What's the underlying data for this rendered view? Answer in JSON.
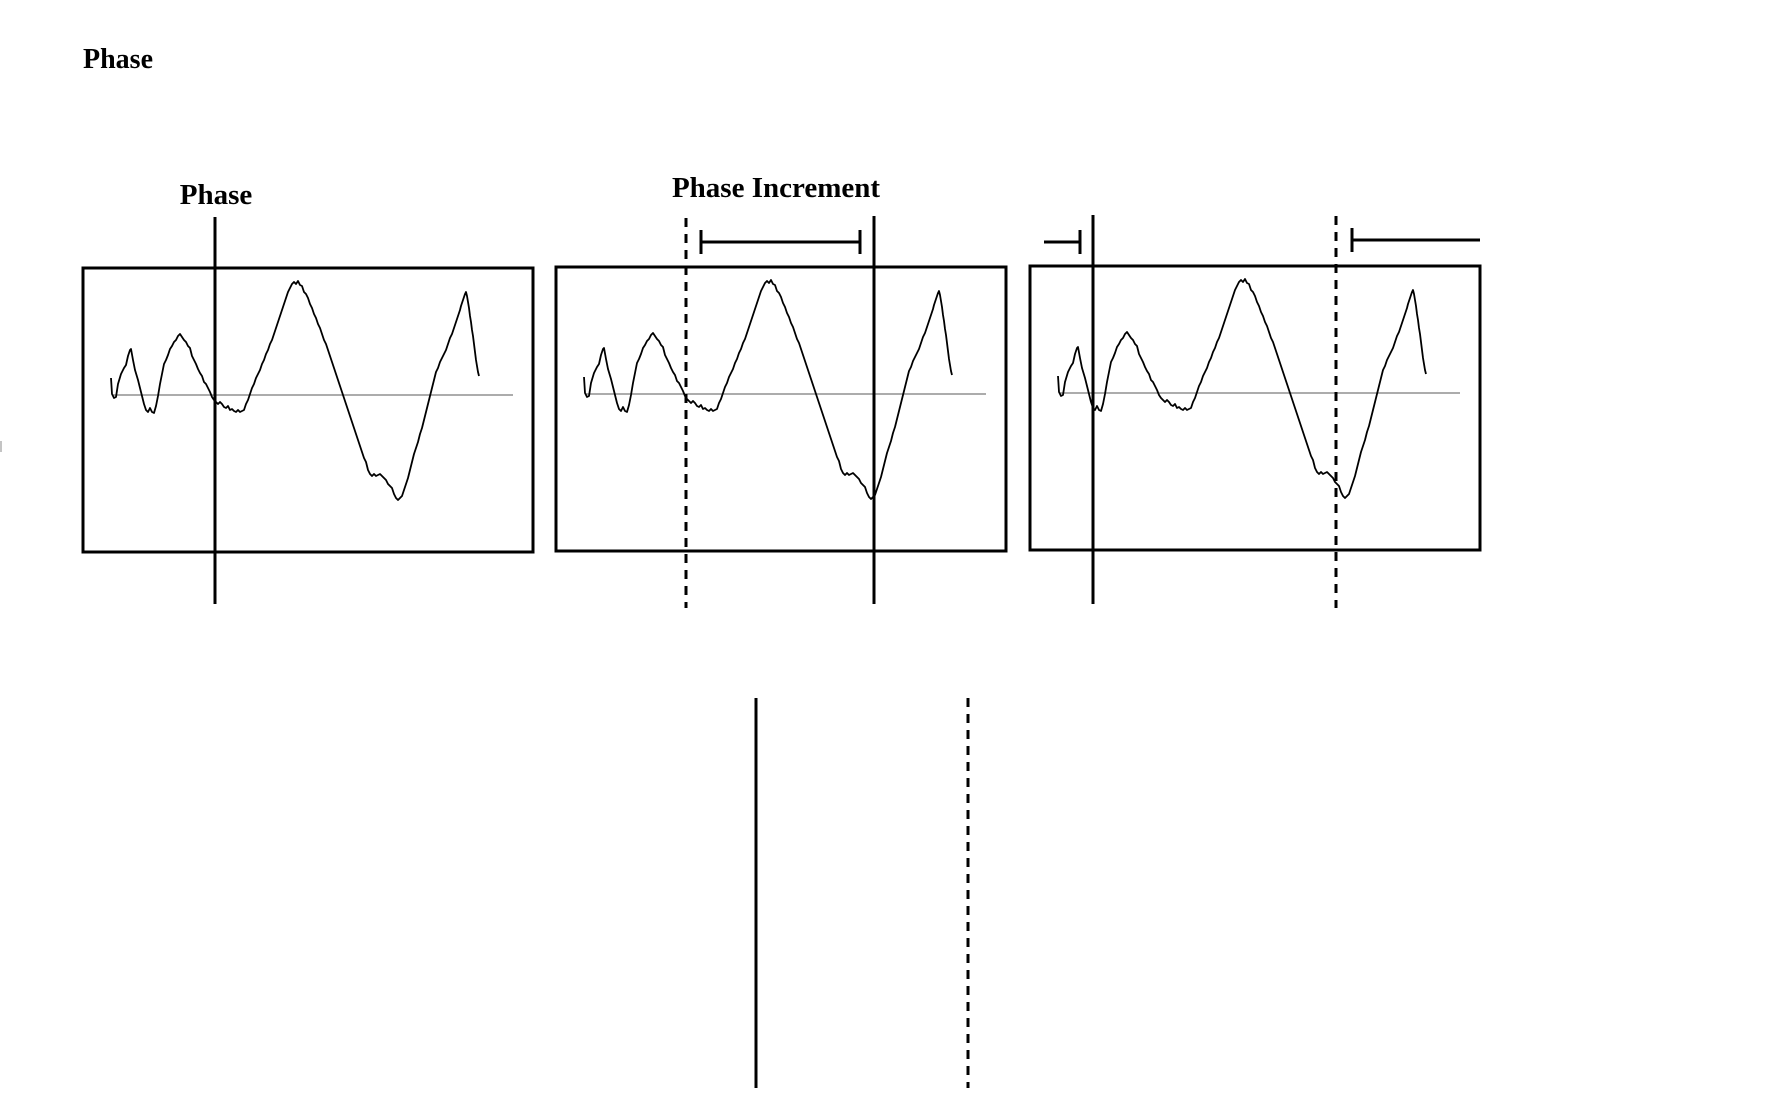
{
  "page": {
    "title": "Phase"
  },
  "labels": {
    "phase": "Phase",
    "phase_increment": "Phase Increment"
  }
}
